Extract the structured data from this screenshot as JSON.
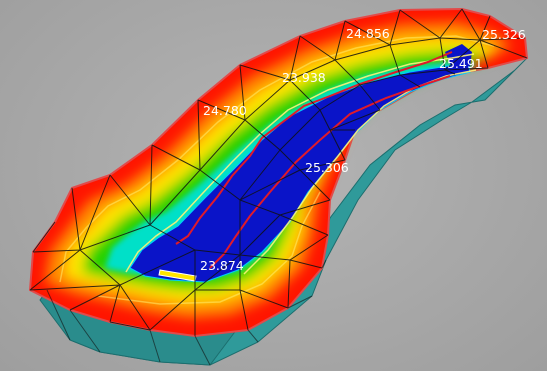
{
  "contour_labels": [
    {
      "text": "24.856"
    },
    {
      "text": "25.326"
    },
    {
      "text": "23.938"
    },
    {
      "text": "25.491"
    },
    {
      "text": "24.780"
    },
    {
      "text": "25.306"
    },
    {
      "text": "23.874"
    }
  ],
  "colors": {
    "background": "#a6a6a6",
    "base_side": "#2f9a9a",
    "outer_edge": "#e24a4a",
    "red": "#ff1500",
    "orange": "#ff8a00",
    "yellow": "#ffe600",
    "green": "#28d200",
    "cyan": "#00e0c8",
    "blue": "#0a14c8",
    "contour_line": "#fff27a",
    "channel_line": "#e01a2a",
    "mesh_lines": "#111111",
    "label_text": "#ffffff"
  }
}
